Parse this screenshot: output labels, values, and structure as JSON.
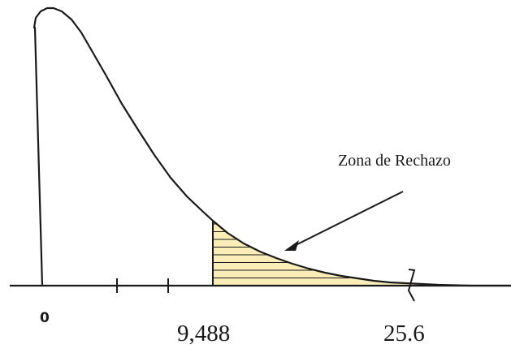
{
  "diagram": {
    "title": "",
    "axis_labels": {
      "zero": "0",
      "critical_value": "9,488",
      "statistic": "25.6"
    },
    "annotation": "Zona de Rechazo",
    "colors": {
      "curve": "#1a1a1a",
      "rejection_fill": "#fbedb8",
      "hatch": "#1a1a1a",
      "axis": "#1a1a1a"
    }
  }
}
